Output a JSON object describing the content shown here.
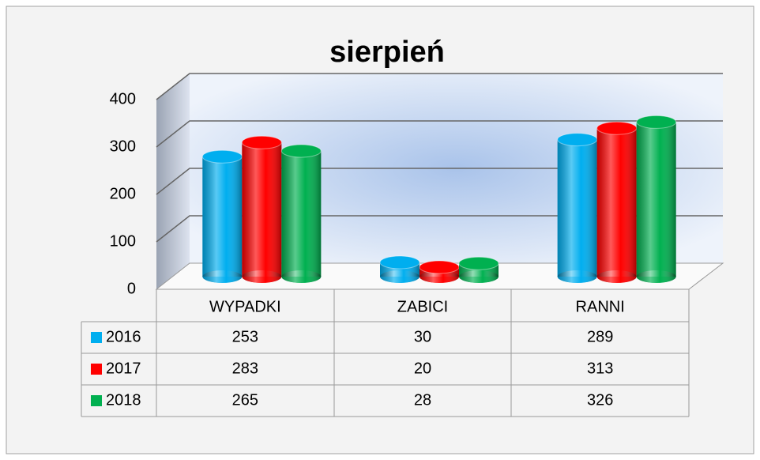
{
  "chart_data": {
    "type": "bar",
    "title": "sierpień",
    "categories": [
      "WYPADKI",
      "ZABICI",
      "RANNI"
    ],
    "series": [
      {
        "name": "2016",
        "color": "#00aeef",
        "values": [
          253,
          30,
          289
        ]
      },
      {
        "name": "2017",
        "color": "#ff0000",
        "values": [
          283,
          20,
          313
        ]
      },
      {
        "name": "2018",
        "color": "#00b050",
        "values": [
          265,
          28,
          326
        ]
      }
    ],
    "ylim": [
      0,
      400
    ],
    "yticks": [
      0,
      100,
      200,
      300,
      400
    ],
    "grid": true,
    "data_table": true
  }
}
